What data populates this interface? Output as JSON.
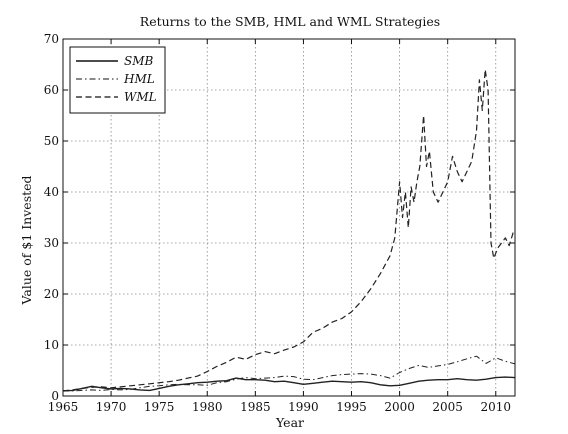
{
  "chart_data": {
    "type": "line",
    "title": "Returns to the SMB, HML and WML Strategies",
    "xlabel": "Year",
    "ylabel": "Value of $1 Invested",
    "xlim": [
      1965,
      2012
    ],
    "ylim": [
      0,
      70
    ],
    "xticks": [
      "1965",
      "1970",
      "1975",
      "1980",
      "1985",
      "1990",
      "1995",
      "2000",
      "2005",
      "2010"
    ],
    "yticks": [
      "0",
      "10",
      "20",
      "30",
      "40",
      "50",
      "60",
      "70"
    ],
    "grid": true,
    "legend_position": "top-left",
    "series": [
      {
        "name": "SMB",
        "line_style": "solid",
        "color": "#111111",
        "x": [
          1965,
          1966,
          1967,
          1968,
          1969,
          1970,
          1971,
          1972,
          1973,
          1974,
          1975,
          1976,
          1977,
          1978,
          1979,
          1980,
          1981,
          1982,
          1983,
          1984,
          1985,
          1986,
          1987,
          1988,
          1989,
          1990,
          1991,
          1992,
          1993,
          1994,
          1995,
          1996,
          1997,
          1998,
          1999,
          2000,
          2001,
          2002,
          2003,
          2004,
          2005,
          2006,
          2007,
          2008,
          2009,
          2010,
          2011,
          2012
        ],
        "values": [
          1.0,
          1.1,
          1.5,
          1.9,
          1.6,
          1.4,
          1.5,
          1.4,
          1.2,
          1.1,
          1.5,
          1.9,
          2.2,
          2.4,
          2.6,
          2.7,
          2.9,
          3.0,
          3.5,
          3.2,
          3.2,
          3.1,
          2.8,
          2.9,
          2.6,
          2.3,
          2.5,
          2.7,
          2.9,
          2.8,
          2.7,
          2.8,
          2.6,
          2.2,
          2.0,
          2.1,
          2.5,
          2.9,
          3.1,
          3.2,
          3.2,
          3.4,
          3.2,
          3.1,
          3.3,
          3.6,
          3.7,
          3.6
        ]
      },
      {
        "name": "HML",
        "line_style": "dashdot",
        "color": "#111111",
        "x": [
          1965,
          1966,
          1967,
          1968,
          1969,
          1970,
          1971,
          1972,
          1973,
          1974,
          1975,
          1976,
          1977,
          1978,
          1979,
          1980,
          1981,
          1982,
          1983,
          1984,
          1985,
          1986,
          1987,
          1988,
          1989,
          1990,
          1991,
          1992,
          1993,
          1994,
          1995,
          1996,
          1997,
          1998,
          1999,
          2000,
          2001,
          2002,
          2003,
          2004,
          2005,
          2006,
          2007,
          2008,
          2009,
          2010,
          2011,
          2012
        ],
        "values": [
          1.0,
          1.0,
          1.1,
          1.2,
          1.1,
          1.3,
          1.2,
          1.3,
          1.6,
          1.9,
          2.0,
          2.2,
          2.3,
          2.2,
          2.2,
          2.1,
          2.6,
          2.8,
          3.3,
          3.6,
          3.4,
          3.5,
          3.6,
          3.9,
          3.8,
          3.3,
          3.2,
          3.6,
          4.0,
          4.2,
          4.3,
          4.4,
          4.3,
          4.0,
          3.5,
          4.6,
          5.4,
          6.0,
          5.6,
          5.9,
          6.2,
          6.7,
          7.3,
          7.8,
          6.4,
          7.5,
          6.8,
          6.3
        ]
      },
      {
        "name": "WML",
        "line_style": "dashed",
        "color": "#111111",
        "x": [
          1965,
          1966,
          1967,
          1968,
          1969,
          1970,
          1971,
          1972,
          1973,
          1974,
          1975,
          1976,
          1977,
          1978,
          1979,
          1980,
          1981,
          1982,
          1983,
          1984,
          1985,
          1986,
          1987,
          1988,
          1989,
          1990,
          1991,
          1992,
          1993,
          1994,
          1995,
          1996,
          1997,
          1998,
          1999,
          1999.5,
          2000,
          2000.3,
          2000.6,
          2000.9,
          2001.2,
          2001.5,
          2001.8,
          2002.1,
          2002.5,
          2002.8,
          2003.1,
          2003.5,
          2004,
          2004.5,
          2005,
          2005.5,
          2006,
          2006.5,
          2007,
          2007.5,
          2008,
          2008.3,
          2008.6,
          2008.9,
          2009.2,
          2009.5,
          2009.8,
          2010.2,
          2010.6,
          2011,
          2011.4,
          2011.8,
          2012
        ],
        "values": [
          1.0,
          1.2,
          1.5,
          1.7,
          1.8,
          1.6,
          1.8,
          2.0,
          2.2,
          2.4,
          2.6,
          2.8,
          3.1,
          3.5,
          3.9,
          4.8,
          5.8,
          6.6,
          7.6,
          7.2,
          8.1,
          8.7,
          8.3,
          9.0,
          9.6,
          10.6,
          12.5,
          13.3,
          14.5,
          15.2,
          16.5,
          18.5,
          21.0,
          24.0,
          27.5,
          31.0,
          42.0,
          35.0,
          40.0,
          33.0,
          41.0,
          38.0,
          42.0,
          45.0,
          55.0,
          45.0,
          48.0,
          40.0,
          38.0,
          40.0,
          42.0,
          47.0,
          44.0,
          42.0,
          44.0,
          46.0,
          52.0,
          62.0,
          56.0,
          64.0,
          60.0,
          30.0,
          27.0,
          29.0,
          30.0,
          31.0,
          29.5,
          32.0,
          32.5
        ]
      }
    ]
  }
}
